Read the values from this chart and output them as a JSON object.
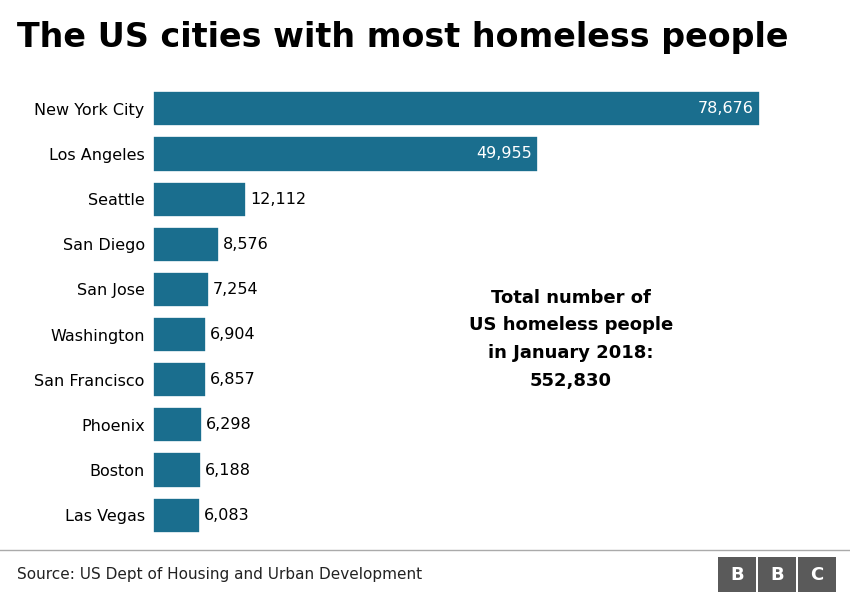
{
  "title": "The US cities with most homeless people",
  "cities": [
    "New York City",
    "Los Angeles",
    "Seattle",
    "San Diego",
    "San Jose",
    "Washington",
    "San Francisco",
    "Phoenix",
    "Boston",
    "Las Vegas"
  ],
  "values": [
    78676,
    49955,
    12112,
    8576,
    7254,
    6904,
    6857,
    6298,
    6188,
    6083
  ],
  "labels": [
    "78,676",
    "49,955",
    "12,112",
    "8,576",
    "7,254",
    "6,904",
    "6,857",
    "6,298",
    "6,188",
    "6,083"
  ],
  "bar_color": "#1a6e8e",
  "background_color": "#ffffff",
  "annotation_text": "Total number of\nUS homeless people\nin January 2018:\n552,830",
  "source_text": "Source: US Dept of Housing and Urban Development",
  "bbc_letters": [
    "B",
    "B",
    "C"
  ],
  "xlim": [
    0,
    86000
  ],
  "title_fontsize": 24,
  "label_fontsize": 11.5,
  "city_fontsize": 11.5,
  "annotation_fontsize": 13,
  "source_fontsize": 11
}
